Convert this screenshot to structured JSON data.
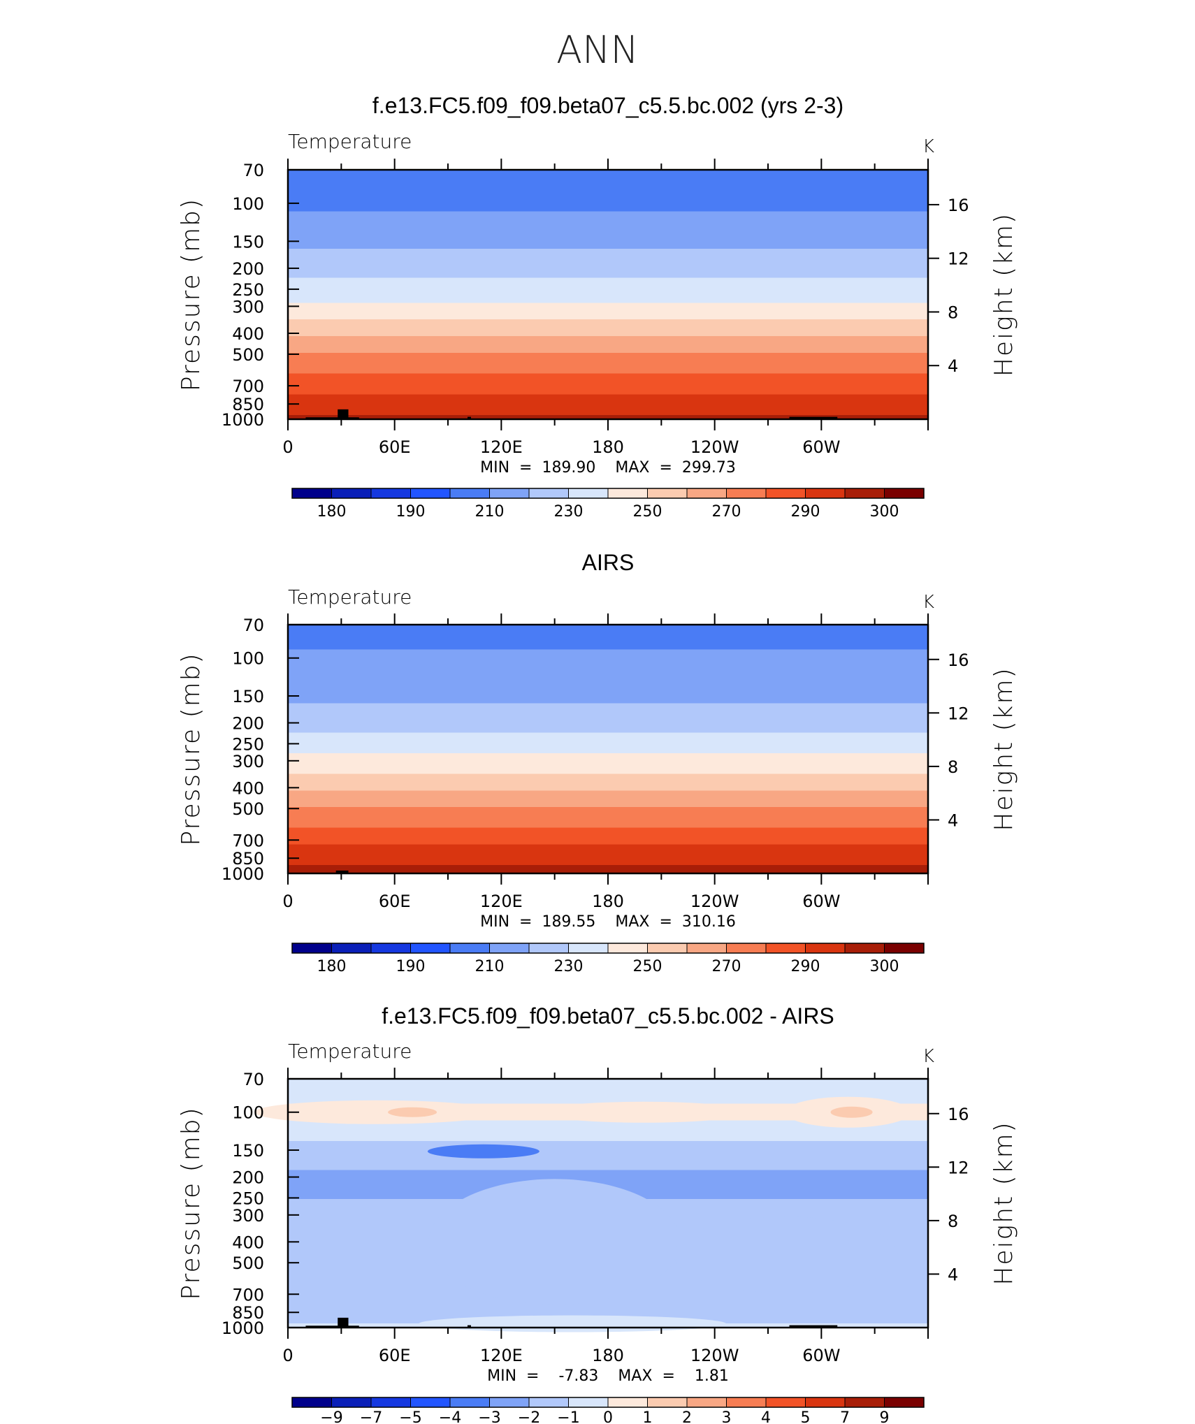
{
  "figure_title": "ANN",
  "colors": {
    "temp_scale": [
      "#00008b",
      "#0a1fb8",
      "#1538e0",
      "#2255ff",
      "#4a7cf5",
      "#7fa3f7",
      "#b1c8fa",
      "#d8e6fb",
      "#fde9dc",
      "#fbcbb0",
      "#f8a784",
      "#f77d53",
      "#f25327",
      "#d93510",
      "#a81e08",
      "#7a0000"
    ],
    "diff_scale": [
      "#00008b",
      "#0a1fb8",
      "#1538e0",
      "#2255ff",
      "#4a7cf5",
      "#7fa3f7",
      "#b1c8fa",
      "#d8e6fb",
      "#fde9dc",
      "#fbcbb0",
      "#f8a784",
      "#f77d53",
      "#f25327",
      "#d93510",
      "#a81e08",
      "#7a0000"
    ],
    "topography": "#000000"
  },
  "chart_data": [
    {
      "type": "heatmap",
      "id": "model",
      "title": "f.e13.FC5.f09_f09.beta07_c5.5.bc.002 (yrs 2-3)",
      "variable": "Temperature",
      "units": "K",
      "ylabel": "Pressure (mb)",
      "y2label": "Height (km)",
      "yticks": [
        "70",
        "100",
        "150",
        "200",
        "250",
        "300",
        "400",
        "500",
        "700",
        "850",
        "1000"
      ],
      "ytick_values": [
        70,
        100,
        150,
        200,
        250,
        300,
        400,
        500,
        700,
        850,
        1000
      ],
      "y2ticks": [
        "16",
        "12",
        "8",
        "4"
      ],
      "y2tick_values": [
        16,
        12,
        8,
        4
      ],
      "xticks": [
        "0",
        "60E",
        "120E",
        "180",
        "120W",
        "60W"
      ],
      "xtick_values": [
        0,
        60,
        120,
        180,
        240,
        300
      ],
      "xlim": [
        0,
        360
      ],
      "ylim": [
        70,
        1000
      ],
      "stats_text": "MIN  =  189.90    MAX  =  299.73",
      "min": 189.9,
      "max": 299.73,
      "colorbar_labels": [
        "180",
        "190",
        "210",
        "230",
        "250",
        "270",
        "290",
        "300"
      ],
      "colorbar_levels": [
        175,
        180,
        185,
        190,
        200,
        210,
        220,
        230,
        240,
        250,
        260,
        270,
        280,
        290,
        295,
        300
      ],
      "levels_hPa": [
        70,
        100,
        150,
        200,
        250,
        300,
        400,
        500,
        700,
        850,
        1000
      ],
      "profile_K": [
        197,
        199,
        208,
        216,
        226,
        233,
        249,
        261,
        277,
        286,
        293
      ]
    },
    {
      "type": "heatmap",
      "id": "obs",
      "title": "AIRS",
      "variable": "Temperature",
      "units": "K",
      "ylabel": "Pressure (mb)",
      "y2label": "Height (km)",
      "yticks": [
        "70",
        "100",
        "150",
        "200",
        "250",
        "300",
        "400",
        "500",
        "700",
        "850",
        "1000"
      ],
      "ytick_values": [
        70,
        100,
        150,
        200,
        250,
        300,
        400,
        500,
        700,
        850,
        1000
      ],
      "y2ticks": [
        "16",
        "12",
        "8",
        "4"
      ],
      "y2tick_values": [
        16,
        12,
        8,
        4
      ],
      "xticks": [
        "0",
        "60E",
        "120E",
        "180",
        "120W",
        "60W"
      ],
      "xtick_values": [
        0,
        60,
        120,
        180,
        240,
        300
      ],
      "xlim": [
        0,
        360
      ],
      "ylim": [
        70,
        1000
      ],
      "stats_text": "MIN  =  189.55    MAX  =  310.16",
      "min": 189.55,
      "max": 310.16,
      "colorbar_labels": [
        "180",
        "190",
        "210",
        "230",
        "250",
        "270",
        "290",
        "300"
      ],
      "colorbar_levels": [
        175,
        180,
        185,
        190,
        200,
        210,
        220,
        230,
        240,
        250,
        260,
        270,
        280,
        290,
        295,
        300
      ],
      "levels_hPa": [
        70,
        100,
        150,
        200,
        250,
        300,
        400,
        500,
        700,
        850,
        1000
      ],
      "profile_K": [
        198,
        201,
        209,
        217,
        227,
        234,
        250,
        262,
        278,
        287,
        294
      ]
    },
    {
      "type": "heatmap",
      "id": "diff",
      "title": "f.e13.FC5.f09_f09.beta07_c5.5.bc.002 - AIRS",
      "variable": "Temperature",
      "units": "K",
      "ylabel": "Pressure (mb)",
      "y2label": "Height (km)",
      "yticks": [
        "70",
        "100",
        "150",
        "200",
        "250",
        "300",
        "400",
        "500",
        "700",
        "850",
        "1000"
      ],
      "ytick_values": [
        70,
        100,
        150,
        200,
        250,
        300,
        400,
        500,
        700,
        850,
        1000
      ],
      "y2ticks": [
        "16",
        "12",
        "8",
        "4"
      ],
      "y2tick_values": [
        16,
        12,
        8,
        4
      ],
      "xticks": [
        "0",
        "60E",
        "120E",
        "180",
        "120W",
        "60W"
      ],
      "xtick_values": [
        0,
        60,
        120,
        180,
        240,
        300
      ],
      "xlim": [
        0,
        360
      ],
      "ylim": [
        70,
        1000
      ],
      "stats_text": "MIN  =    -7.83    MAX  =    1.81",
      "min": -7.83,
      "max": 1.81,
      "colorbar_labels": [
        "−9",
        "−7",
        "−5",
        "−4",
        "−3",
        "−2",
        "−1",
        "0",
        "1",
        "2",
        "3",
        "4",
        "5",
        "7",
        "9"
      ],
      "colorbar_levels": [
        -9,
        -7,
        -5,
        -4,
        -3,
        -2,
        -1,
        0,
        1,
        2,
        3,
        4,
        5,
        7,
        9
      ],
      "levels_hPa": [
        70,
        100,
        150,
        200,
        250,
        300,
        400,
        500,
        700,
        850,
        1000
      ],
      "profile_K": [
        -0.5,
        0.3,
        -1.5,
        -2.3,
        -2.0,
        -1.6,
        -1.2,
        -1.1,
        -1.6,
        -1.4,
        -0.7
      ]
    }
  ]
}
